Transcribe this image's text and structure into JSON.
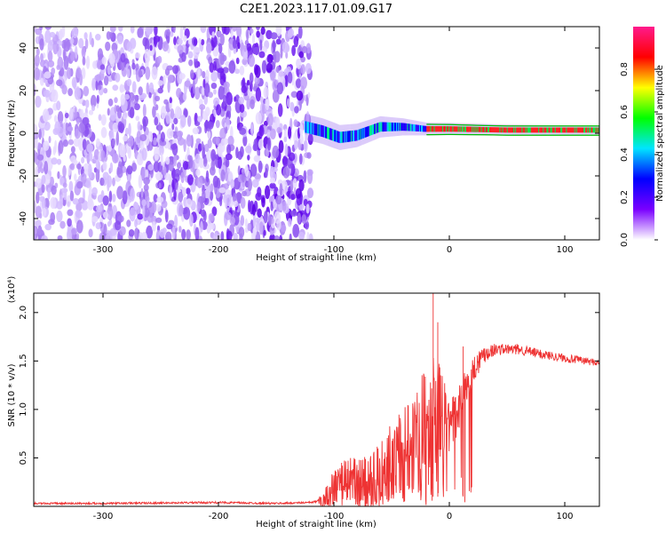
{
  "figure": {
    "title": "C2E1.2023.117.01.09.G17"
  },
  "chart_data": [
    {
      "type": "heatmap",
      "xlabel": "Height of straight line (km)",
      "ylabel": "Frequency (Hz)",
      "xlim": [
        -360,
        130
      ],
      "ylim": [
        -50,
        50
      ],
      "xticks": [
        -300,
        -200,
        -100,
        0,
        100
      ],
      "yticks": [
        -40,
        -20,
        0,
        20,
        40
      ],
      "colorbar": {
        "label": "Normalized spectral amplitude",
        "range": [
          0.0,
          1.0
        ],
        "ticks": [
          0.0,
          0.2,
          0.4,
          0.6,
          0.8
        ],
        "colors": [
          "#ffffff",
          "#7a00ff",
          "#0000ff",
          "#00e5ff",
          "#00ff00",
          "#ffff00",
          "#ff0000",
          "#ff1a8c"
        ]
      },
      "regions": [
        {
          "x_range": [
            -360,
            -120
          ],
          "f_range": [
            -50,
            50
          ],
          "amplitude": 0.15,
          "description": "broadband scattered noise"
        },
        {
          "x_range": [
            -125,
            130
          ],
          "f_center": 2,
          "amplitude": 0.4
        },
        {
          "x_range": [
            -20,
            130
          ],
          "f_center": 1.5,
          "amplitude": 0.85
        }
      ],
      "ridge": [
        {
          "x": -125,
          "f": 3
        },
        {
          "x": -110,
          "f": 1
        },
        {
          "x": -95,
          "f": -2
        },
        {
          "x": -80,
          "f": -1
        },
        {
          "x": -60,
          "f": 3
        },
        {
          "x": -40,
          "f": 3
        },
        {
          "x": -20,
          "f": 2
        },
        {
          "x": 0,
          "f": 2
        },
        {
          "x": 50,
          "f": 1.5
        },
        {
          "x": 130,
          "f": 1.5
        }
      ],
      "ridge_width_hz": [
        {
          "x": -125,
          "w": 6
        },
        {
          "x": -100,
          "w": 6
        },
        {
          "x": -60,
          "w": 5
        },
        {
          "x": -20,
          "w": 3
        },
        {
          "x": 130,
          "w": 2
        }
      ],
      "grid": false,
      "legend": "none"
    },
    {
      "type": "line",
      "xlabel": "Height of straight line (km)",
      "ylabel": "SNR (10 * v/v)",
      "yscale_label": "(x10⁴)",
      "xlim": [
        -360,
        130
      ],
      "ylim": [
        0,
        2.2
      ],
      "xticks": [
        -300,
        -200,
        -100,
        0,
        100
      ],
      "yticks": [
        0.5,
        1.0,
        1.5,
        2.0
      ],
      "color": "#ee3333",
      "series": [
        {
          "points": [
            {
              "x": -360,
              "y": 0.03
            },
            {
              "x": -300,
              "y": 0.03
            },
            {
              "x": -200,
              "y": 0.04
            },
            {
              "x": -150,
              "y": 0.03
            },
            {
              "x": -120,
              "y": 0.04
            },
            {
              "x": -110,
              "y": 0.06
            },
            {
              "x": -100,
              "y": 0.2
            },
            {
              "x": -90,
              "y": 0.3
            },
            {
              "x": -80,
              "y": 0.28
            },
            {
              "x": -70,
              "y": 0.2
            },
            {
              "x": -60,
              "y": 0.35
            },
            {
              "x": -50,
              "y": 0.5
            },
            {
              "x": -40,
              "y": 0.6
            },
            {
              "x": -30,
              "y": 0.75
            },
            {
              "x": -20,
              "y": 0.85
            },
            {
              "x": -15,
              "y": 0.9
            },
            {
              "x": -10,
              "y": 1.0
            },
            {
              "x": -5,
              "y": 0.95
            },
            {
              "x": 0,
              "y": 0.85
            },
            {
              "x": 5,
              "y": 0.9
            },
            {
              "x": 10,
              "y": 1.1
            },
            {
              "x": 20,
              "y": 1.4
            },
            {
              "x": 30,
              "y": 1.58
            },
            {
              "x": 40,
              "y": 1.62
            },
            {
              "x": 60,
              "y": 1.62
            },
            {
              "x": 80,
              "y": 1.57
            },
            {
              "x": 100,
              "y": 1.53
            },
            {
              "x": 130,
              "y": 1.48
            }
          ],
          "noise": [
            {
              "x": -360,
              "a": 0.02
            },
            {
              "x": -115,
              "a": 0.02
            },
            {
              "x": -105,
              "a": 0.3
            },
            {
              "x": -50,
              "a": 0.8
            },
            {
              "x": -15,
              "a": 1.3
            },
            {
              "x": 0,
              "a": 0.6
            },
            {
              "x": 20,
              "a": 0.3
            },
            {
              "x": 40,
              "a": 0.12
            },
            {
              "x": 130,
              "a": 0.07
            }
          ],
          "spikes": [
            {
              "x": -14,
              "y": 2.2
            },
            {
              "x": -10,
              "y": 1.9
            },
            {
              "x": 12,
              "y": 1.65
            }
          ]
        }
      ],
      "grid": false,
      "legend": "none"
    }
  ]
}
